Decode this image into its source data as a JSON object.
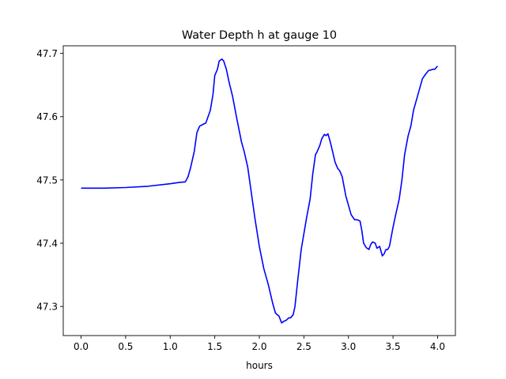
{
  "chart_data": {
    "type": "line",
    "title": "Water Depth h at gauge 10",
    "xlabel": "hours",
    "ylabel": "",
    "xlim": [
      -0.2,
      4.2
    ],
    "ylim": [
      47.254,
      47.712
    ],
    "x_ticks": [
      0.0,
      0.5,
      1.0,
      1.5,
      2.0,
      2.5,
      3.0,
      3.5,
      4.0
    ],
    "x_tick_labels": [
      "0.0",
      "0.5",
      "1.0",
      "1.5",
      "2.0",
      "2.5",
      "3.0",
      "3.5",
      "4.0"
    ],
    "y_ticks": [
      47.3,
      47.4,
      47.5,
      47.6,
      47.7
    ],
    "y_tick_labels": [
      "47.3",
      "47.4",
      "47.5",
      "47.6",
      "47.7"
    ],
    "grid": false,
    "legend": "none",
    "series": [
      {
        "color": "#0000ff",
        "x": [
          0.0,
          0.25,
          0.5,
          0.75,
          1.0,
          1.1,
          1.17,
          1.2,
          1.23,
          1.27,
          1.3,
          1.33,
          1.37,
          1.4,
          1.45,
          1.48,
          1.5,
          1.53,
          1.55,
          1.58,
          1.6,
          1.63,
          1.66,
          1.7,
          1.75,
          1.8,
          1.83,
          1.87,
          1.9,
          1.95,
          2.0,
          2.05,
          2.1,
          2.15,
          2.18,
          2.2,
          2.22,
          2.25,
          2.28,
          2.3,
          2.33,
          2.35,
          2.38,
          2.4,
          2.43,
          2.47,
          2.5,
          2.53,
          2.57,
          2.6,
          2.63,
          2.65,
          2.68,
          2.7,
          2.73,
          2.75,
          2.77,
          2.78,
          2.8,
          2.83,
          2.85,
          2.88,
          2.9,
          2.93,
          2.95,
          2.97,
          3.0,
          3.03,
          3.07,
          3.1,
          3.13,
          3.15,
          3.17,
          3.2,
          3.23,
          3.25,
          3.27,
          3.3,
          3.32,
          3.35,
          3.38,
          3.4,
          3.42,
          3.44,
          3.46,
          3.48,
          3.5,
          3.53,
          3.57,
          3.6,
          3.63,
          3.67,
          3.7,
          3.73,
          3.77,
          3.8,
          3.83,
          3.87,
          3.9,
          3.93,
          3.95,
          3.97,
          4.0
        ],
        "y": [
          47.487,
          47.487,
          47.488,
          47.49,
          47.494,
          47.496,
          47.497,
          47.505,
          47.52,
          47.545,
          47.575,
          47.585,
          47.588,
          47.59,
          47.61,
          47.635,
          47.665,
          47.675,
          47.688,
          47.691,
          47.688,
          47.675,
          47.655,
          47.632,
          47.595,
          47.56,
          47.545,
          47.52,
          47.49,
          47.44,
          47.395,
          47.36,
          47.335,
          47.305,
          47.29,
          47.287,
          47.285,
          47.274,
          47.277,
          47.278,
          47.282,
          47.282,
          47.287,
          47.3,
          47.34,
          47.39,
          47.415,
          47.44,
          47.47,
          47.51,
          47.54,
          47.545,
          47.555,
          47.565,
          47.572,
          47.57,
          47.573,
          47.568,
          47.558,
          47.54,
          47.528,
          47.518,
          47.515,
          47.505,
          47.49,
          47.475,
          47.46,
          47.445,
          47.437,
          47.437,
          47.435,
          47.42,
          47.4,
          47.393,
          47.39,
          47.398,
          47.402,
          47.4,
          47.392,
          47.395,
          47.38,
          47.383,
          47.39,
          47.39,
          47.395,
          47.41,
          47.425,
          47.445,
          47.47,
          47.5,
          47.54,
          47.57,
          47.585,
          47.61,
          47.63,
          47.645,
          47.66,
          47.668,
          47.673,
          47.674,
          47.675,
          47.675,
          47.68
        ]
      }
    ]
  }
}
